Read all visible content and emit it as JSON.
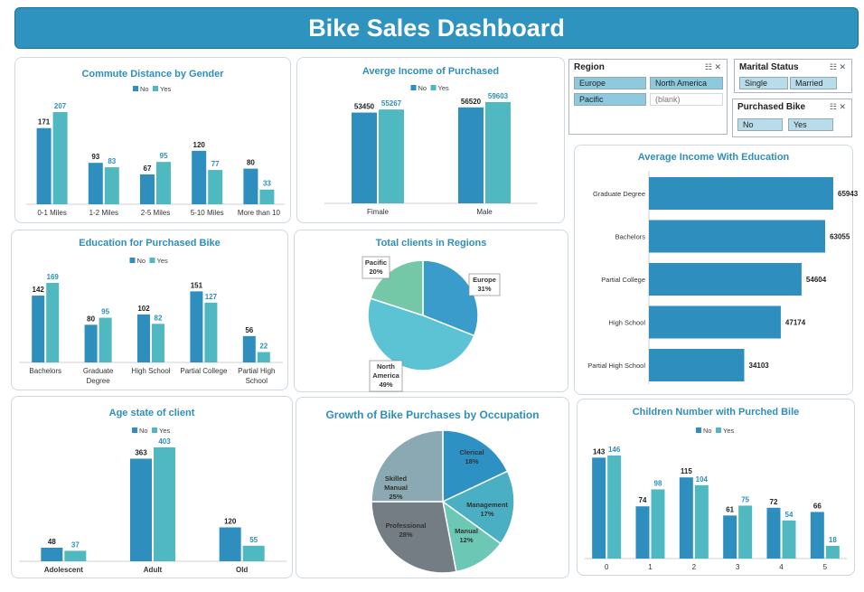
{
  "title": "Bike Sales Dashboard",
  "colors": {
    "no": "#2e8fbe",
    "yes": "#4fb8c0",
    "accent": "#2e94bf",
    "title": "#2e8fbe"
  },
  "slicers": {
    "region": {
      "title": "Region",
      "items": [
        "Europe",
        "North America",
        "Pacific",
        "(blank)"
      ]
    },
    "marital": {
      "title": "Marital Status",
      "items": [
        "Single",
        "Married"
      ]
    },
    "purchased": {
      "title": "Purchased Bike",
      "items": [
        "No",
        "Yes"
      ]
    }
  },
  "charts": {
    "commute": {
      "type": "bar",
      "title": "Commute Distance by Gender",
      "legend": [
        "No",
        "Yes"
      ],
      "categories": [
        "0-1 Miles",
        "1-2 Miles",
        "2-5 Miles",
        "5-10 Miles",
        "More than 10"
      ],
      "series": [
        {
          "name": "No",
          "values": [
            171,
            93,
            67,
            120,
            80
          ]
        },
        {
          "name": "Yes",
          "values": [
            207,
            83,
            95,
            77,
            33
          ]
        }
      ]
    },
    "income": {
      "type": "bar",
      "title": "Averge Income of Purchased",
      "legend": [
        "No",
        "Yes"
      ],
      "categories": [
        "Fimale",
        "Male"
      ],
      "series": [
        {
          "name": "No",
          "values": [
            53450,
            56520
          ]
        },
        {
          "name": "Yes",
          "values": [
            55267,
            59603
          ]
        }
      ]
    },
    "education": {
      "type": "bar",
      "title": "Education for Purchased Bike",
      "legend": [
        "No",
        "Yes"
      ],
      "categories": [
        "Bachelors",
        "Graduate Degree",
        "High School",
        "Partial College",
        "Partial High School"
      ],
      "series": [
        {
          "name": "No",
          "values": [
            142,
            80,
            102,
            151,
            56
          ]
        },
        {
          "name": "Yes",
          "values": [
            169,
            95,
            82,
            127,
            22
          ]
        }
      ]
    },
    "regions": {
      "type": "pie",
      "title": "Total clients in Regions",
      "slices": [
        {
          "label": "Europe",
          "pct": "31%",
          "value": 31
        },
        {
          "label": "North America",
          "pct": "49%",
          "value": 49
        },
        {
          "label": "Pacific",
          "pct": "20%",
          "value": 20
        }
      ]
    },
    "incomeEdu": {
      "type": "bar",
      "title": "Average Income With Education",
      "categories": [
        "Graduate Degree",
        "Bachelors",
        "Partial College",
        "High School",
        "Partial High School"
      ],
      "values": [
        65943,
        63055,
        54604,
        47174,
        34103
      ]
    },
    "age": {
      "type": "bar",
      "title": "Age state of client",
      "legend": [
        "No",
        "Yes"
      ],
      "categories": [
        "Adolescent",
        "Adult",
        "Old"
      ],
      "series": [
        {
          "name": "No",
          "values": [
            48,
            363,
            120
          ]
        },
        {
          "name": "Yes",
          "values": [
            37,
            403,
            55
          ]
        }
      ]
    },
    "occupation": {
      "type": "pie",
      "title": "Growth of Bike Purchases by Occupation",
      "slices": [
        {
          "label": "Clerical",
          "pct": "18%",
          "value": 18
        },
        {
          "label": "Management",
          "pct": "17%",
          "value": 17
        },
        {
          "label": "Manual",
          "pct": "12%",
          "value": 12
        },
        {
          "label": "Professional",
          "pct": "28%",
          "value": 28
        },
        {
          "label": "Skilled Manual",
          "pct": "25%",
          "value": 25
        }
      ]
    },
    "children": {
      "type": "bar",
      "title": "Children Number with Purched Bile",
      "legend": [
        "No",
        "Yes"
      ],
      "categories": [
        "0",
        "1",
        "2",
        "3",
        "4",
        "5"
      ],
      "series": [
        {
          "name": "No",
          "values": [
            143,
            74,
            115,
            61,
            72,
            66
          ]
        },
        {
          "name": "Yes",
          "values": [
            146,
            98,
            104,
            75,
            54,
            18
          ]
        }
      ]
    }
  }
}
